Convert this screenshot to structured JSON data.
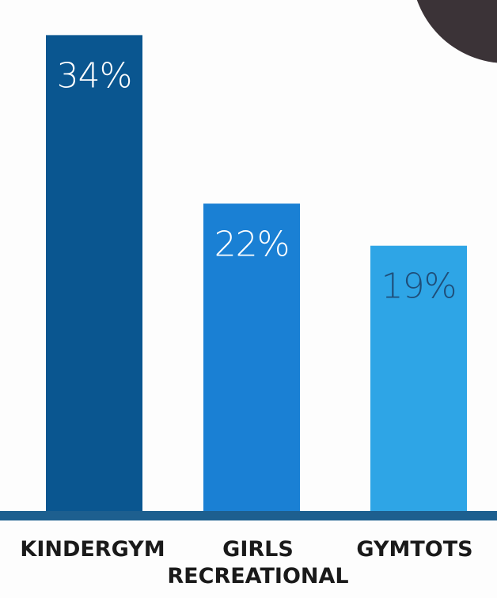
{
  "chart_data": {
    "type": "bar",
    "categories": [
      {
        "line1": "KINDERGYM",
        "line2": ""
      },
      {
        "line1": "GIRLS",
        "line2": "RECREATIONAL"
      },
      {
        "line1": "GYMTOTS",
        "line2": ""
      }
    ],
    "values": [
      34,
      22,
      19
    ],
    "value_labels": [
      "34%",
      "22%",
      "19%"
    ],
    "bar_colors": [
      "#0a5690",
      "#1a80d4",
      "#2ea5e6"
    ],
    "value_label_colors": [
      "#ffffff",
      "#ffffff",
      "#1f4e79"
    ],
    "ylim": [
      0,
      36.5
    ],
    "grid": false,
    "baseline_color": "#1d5f8f"
  },
  "decor": {
    "corner_color": "#3b3337"
  }
}
